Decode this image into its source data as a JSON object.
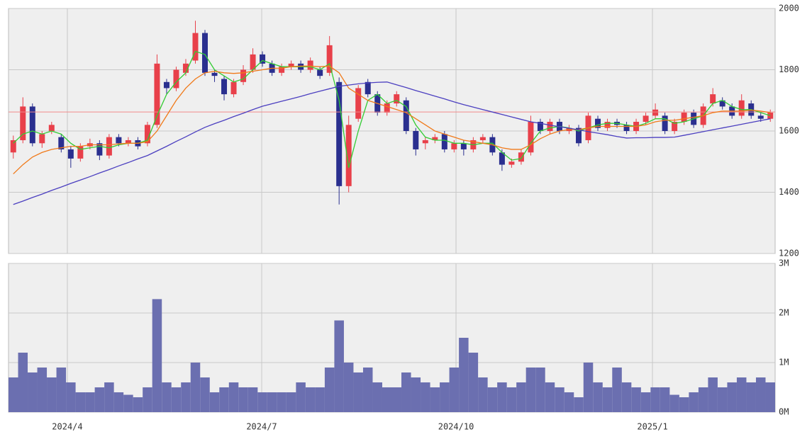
{
  "chart_data": [
    {
      "type": "candlestick",
      "open": [
        1530,
        1570,
        1680,
        1560,
        1600,
        1580,
        1540,
        1510,
        1550,
        1560,
        1520,
        1580,
        1560,
        1570,
        1560,
        1620,
        1760,
        1740,
        1790,
        1830,
        1920,
        1790,
        1770,
        1720,
        1760,
        1800,
        1850,
        1820,
        1790,
        1810,
        1820,
        1800,
        1800,
        1790,
        1760,
        1420,
        1640,
        1760,
        1720,
        1660,
        1690,
        1700,
        1600,
        1560,
        1570,
        1590,
        1540,
        1560,
        1540,
        1570,
        1580,
        1530,
        1490,
        1500,
        1530,
        1630,
        1600,
        1630,
        1600,
        1610,
        1570,
        1640,
        1610,
        1630,
        1620,
        1600,
        1630,
        1650,
        1650,
        1600,
        1630,
        1660,
        1620,
        1690,
        1700,
        1680,
        1650,
        1690,
        1650,
        1640
      ],
      "high": [
        1585,
        1710,
        1690,
        1600,
        1630,
        1590,
        1550,
        1560,
        1575,
        1570,
        1590,
        1590,
        1580,
        1580,
        1630,
        1850,
        1770,
        1810,
        1835,
        1960,
        1930,
        1800,
        1780,
        1770,
        1815,
        1870,
        1860,
        1830,
        1820,
        1830,
        1830,
        1840,
        1810,
        1910,
        1775,
        1650,
        1750,
        1770,
        1730,
        1700,
        1730,
        1710,
        1610,
        1580,
        1590,
        1600,
        1570,
        1570,
        1580,
        1590,
        1590,
        1540,
        1510,
        1540,
        1650,
        1640,
        1640,
        1640,
        1620,
        1620,
        1660,
        1650,
        1640,
        1640,
        1630,
        1640,
        1660,
        1690,
        1660,
        1640,
        1670,
        1670,
        1690,
        1740,
        1710,
        1690,
        1720,
        1700,
        1660,
        1670
      ],
      "low": [
        1510,
        1560,
        1550,
        1545,
        1590,
        1530,
        1480,
        1500,
        1540,
        1505,
        1510,
        1550,
        1550,
        1540,
        1550,
        1610,
        1720,
        1730,
        1780,
        1820,
        1780,
        1760,
        1700,
        1710,
        1750,
        1790,
        1810,
        1780,
        1780,
        1800,
        1790,
        1790,
        1770,
        1780,
        1360,
        1400,
        1630,
        1710,
        1650,
        1650,
        1680,
        1590,
        1520,
        1540,
        1560,
        1530,
        1530,
        1520,
        1530,
        1560,
        1520,
        1470,
        1480,
        1490,
        1520,
        1590,
        1590,
        1590,
        1590,
        1550,
        1560,
        1600,
        1600,
        1610,
        1590,
        1590,
        1620,
        1640,
        1590,
        1590,
        1620,
        1610,
        1610,
        1680,
        1670,
        1640,
        1640,
        1640,
        1630,
        1630
      ],
      "close": [
        1570,
        1680,
        1560,
        1590,
        1620,
        1540,
        1510,
        1550,
        1560,
        1520,
        1580,
        1560,
        1570,
        1550,
        1620,
        1820,
        1740,
        1800,
        1820,
        1920,
        1790,
        1780,
        1720,
        1760,
        1800,
        1850,
        1820,
        1790,
        1810,
        1820,
        1800,
        1830,
        1780,
        1880,
        1420,
        1620,
        1740,
        1720,
        1660,
        1690,
        1720,
        1600,
        1540,
        1570,
        1580,
        1540,
        1560,
        1540,
        1570,
        1580,
        1530,
        1490,
        1500,
        1530,
        1630,
        1600,
        1630,
        1600,
        1610,
        1560,
        1650,
        1610,
        1630,
        1620,
        1600,
        1630,
        1650,
        1670,
        1600,
        1630,
        1660,
        1620,
        1680,
        1720,
        1680,
        1650,
        1700,
        1650,
        1640,
        1660
      ],
      "up_color": "#e8404a",
      "down_color": "#2a2f8f",
      "lines": [
        {
          "color": "#33cc33",
          "values": [
            1560,
            1590,
            1600,
            1590,
            1600,
            1590,
            1560,
            1540,
            1545,
            1550,
            1545,
            1555,
            1560,
            1560,
            1570,
            1650,
            1720,
            1760,
            1790,
            1860,
            1850,
            1800,
            1780,
            1760,
            1770,
            1800,
            1830,
            1820,
            1810,
            1810,
            1810,
            1810,
            1800,
            1820,
            1700,
            1480,
            1600,
            1700,
            1720,
            1690,
            1700,
            1680,
            1620,
            1580,
            1570,
            1570,
            1560,
            1560,
            1555,
            1560,
            1560,
            1530,
            1505,
            1510,
            1560,
            1600,
            1610,
            1615,
            1610,
            1600,
            1610,
            1620,
            1625,
            1625,
            1620,
            1615,
            1625,
            1640,
            1640,
            1625,
            1630,
            1640,
            1650,
            1690,
            1700,
            1680,
            1670,
            1670,
            1660,
            1650
          ]
        },
        {
          "color": "#f07a1a",
          "values": [
            1460,
            1490,
            1515,
            1530,
            1540,
            1545,
            1550,
            1550,
            1555,
            1555,
            1555,
            1558,
            1560,
            1560,
            1565,
            1600,
            1650,
            1700,
            1740,
            1770,
            1790,
            1795,
            1790,
            1788,
            1790,
            1795,
            1800,
            1805,
            1805,
            1810,
            1812,
            1812,
            1810,
            1812,
            1790,
            1740,
            1720,
            1700,
            1690,
            1680,
            1670,
            1660,
            1640,
            1620,
            1600,
            1590,
            1580,
            1570,
            1565,
            1560,
            1555,
            1545,
            1540,
            1540,
            1555,
            1575,
            1590,
            1600,
            1605,
            1605,
            1610,
            1615,
            1615,
            1615,
            1615,
            1615,
            1620,
            1630,
            1635,
            1635,
            1640,
            1645,
            1650,
            1660,
            1665,
            1665,
            1665,
            1668,
            1665,
            1660
          ]
        },
        {
          "color": "#4b3fc0",
          "values": [
            1360,
            1371,
            1383,
            1394,
            1406,
            1417,
            1429,
            1440,
            1451,
            1463,
            1474,
            1486,
            1497,
            1509,
            1520,
            1535,
            1550,
            1566,
            1581,
            1597,
            1612,
            1624,
            1635,
            1647,
            1658,
            1670,
            1681,
            1689,
            1697,
            1705,
            1713,
            1722,
            1730,
            1738,
            1746,
            1750,
            1754,
            1757,
            1759,
            1760,
            1751,
            1742,
            1732,
            1723,
            1714,
            1705,
            1695,
            1686,
            1678,
            1670,
            1662,
            1654,
            1646,
            1638,
            1630,
            1625,
            1619,
            1614,
            1609,
            1604,
            1598,
            1593,
            1588,
            1582,
            1577,
            1578,
            1578,
            1579,
            1579,
            1580,
            1586,
            1592,
            1598,
            1604,
            1610,
            1616,
            1622,
            1628,
            1634,
            1640
          ]
        }
      ],
      "reference_line": {
        "value": 1662,
        "color": "#f08a8a"
      },
      "xlim": [
        -0.5,
        79.5
      ],
      "xticks": [
        {
          "value": 5.64,
          "label": "2024/4"
        },
        {
          "value": 25.92,
          "label": "2024/7"
        },
        {
          "value": 46.2,
          "label": "2024/10"
        },
        {
          "value": 66.7,
          "label": "2025/1"
        }
      ],
      "ylim": [
        1200,
        2000
      ],
      "yticks": [
        1200,
        1400,
        1600,
        1800,
        2000
      ],
      "grid": true
    },
    {
      "type": "bar",
      "color": "#6b6fb0",
      "values": [
        700000,
        1200000,
        800000,
        900000,
        700000,
        900000,
        600000,
        400000,
        400000,
        500000,
        600000,
        400000,
        350000,
        300000,
        500000,
        2280000,
        600000,
        500000,
        600000,
        1000000,
        700000,
        400000,
        500000,
        600000,
        500000,
        500000,
        400000,
        400000,
        400000,
        400000,
        600000,
        500000,
        500000,
        900000,
        1850000,
        1000000,
        800000,
        900000,
        600000,
        500000,
        500000,
        800000,
        700000,
        600000,
        500000,
        600000,
        900000,
        1500000,
        1200000,
        700000,
        500000,
        600000,
        500000,
        600000,
        900000,
        900000,
        600000,
        500000,
        400000,
        300000,
        1000000,
        600000,
        500000,
        900000,
        600000,
        500000,
        400000,
        500000,
        500000,
        350000,
        300000,
        400000,
        500000,
        700000,
        500000,
        600000,
        700000,
        600000,
        700000,
        600000
      ],
      "ylim": [
        0,
        3000000
      ],
      "yticks": [
        {
          "value": 0,
          "label": "0M"
        },
        {
          "value": 1000000,
          "label": "1M"
        },
        {
          "value": 2000000,
          "label": "2M"
        },
        {
          "value": 3000000,
          "label": "3M"
        }
      ],
      "grid": true
    }
  ]
}
